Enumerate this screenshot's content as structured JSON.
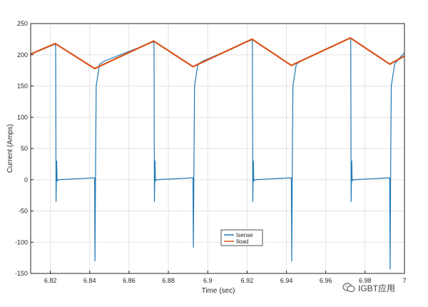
{
  "chart_data": {
    "type": "line",
    "title": "",
    "xlabel": "Time (sec)",
    "ylabel": "Current (Amps)",
    "xlim": [
      6.81,
      7.0
    ],
    "ylim": [
      -150,
      250
    ],
    "xticks": [
      6.82,
      6.84,
      6.86,
      6.88,
      6.9,
      6.92,
      6.94,
      6.96,
      6.98,
      7.0
    ],
    "xtick_labels": [
      "6.82",
      "6.84",
      "6.86",
      "6.88",
      "6.9",
      "6.92",
      "6.94",
      "6.96",
      "6.98",
      "7"
    ],
    "yticks": [
      -150,
      -100,
      -50,
      0,
      50,
      100,
      150,
      200,
      250
    ],
    "ytick_labels": [
      "-150",
      "-100",
      "-50",
      "0",
      "50",
      "100",
      "150",
      "200",
      "250"
    ],
    "grid": true,
    "legend_position": "bottom-center",
    "series": [
      {
        "name": "Isense",
        "color": "#1f77b4",
        "x": [
          6.81,
          6.8225,
          6.8227,
          6.8229,
          6.8232,
          6.8234,
          6.824,
          6.842,
          6.8425,
          6.8427,
          6.843,
          6.8433,
          6.845,
          6.8475,
          6.8725,
          6.8727,
          6.8729,
          6.8732,
          6.8734,
          6.874,
          6.892,
          6.8925,
          6.8927,
          6.893,
          6.8933,
          6.895,
          6.8975,
          6.9225,
          6.9227,
          6.9229,
          6.9232,
          6.9234,
          6.924,
          6.942,
          6.9425,
          6.9427,
          6.943,
          6.9433,
          6.945,
          6.9475,
          6.9725,
          6.9727,
          6.9729,
          6.9732,
          6.9734,
          6.974,
          6.992,
          6.9925,
          6.9927,
          6.993,
          6.9933,
          6.995,
          6.9975,
          7.0
        ],
        "y": [
          201,
          217,
          212,
          -35,
          30,
          -2,
          0,
          3,
          3,
          -130,
          25,
          150,
          185,
          190,
          221,
          216,
          -35,
          30,
          -2,
          0,
          3,
          3,
          -108,
          25,
          150,
          185,
          190,
          224,
          219,
          -35,
          30,
          -2,
          0,
          3,
          3,
          -130,
          25,
          150,
          185,
          190,
          227,
          222,
          -35,
          30,
          -2,
          0,
          3,
          3,
          -143,
          25,
          150,
          185,
          195,
          203
        ]
      },
      {
        "name": "Iload",
        "color": "#d95319",
        "x": [
          6.81,
          6.8225,
          6.8425,
          6.8725,
          6.8925,
          6.9225,
          6.9425,
          6.9725,
          6.9925,
          7.0
        ],
        "y": [
          201,
          218,
          178,
          222,
          181,
          225,
          183,
          227,
          185,
          198
        ]
      }
    ]
  },
  "watermark": {
    "text": "IGBT应用",
    "icon": "wechat-logo-icon"
  }
}
